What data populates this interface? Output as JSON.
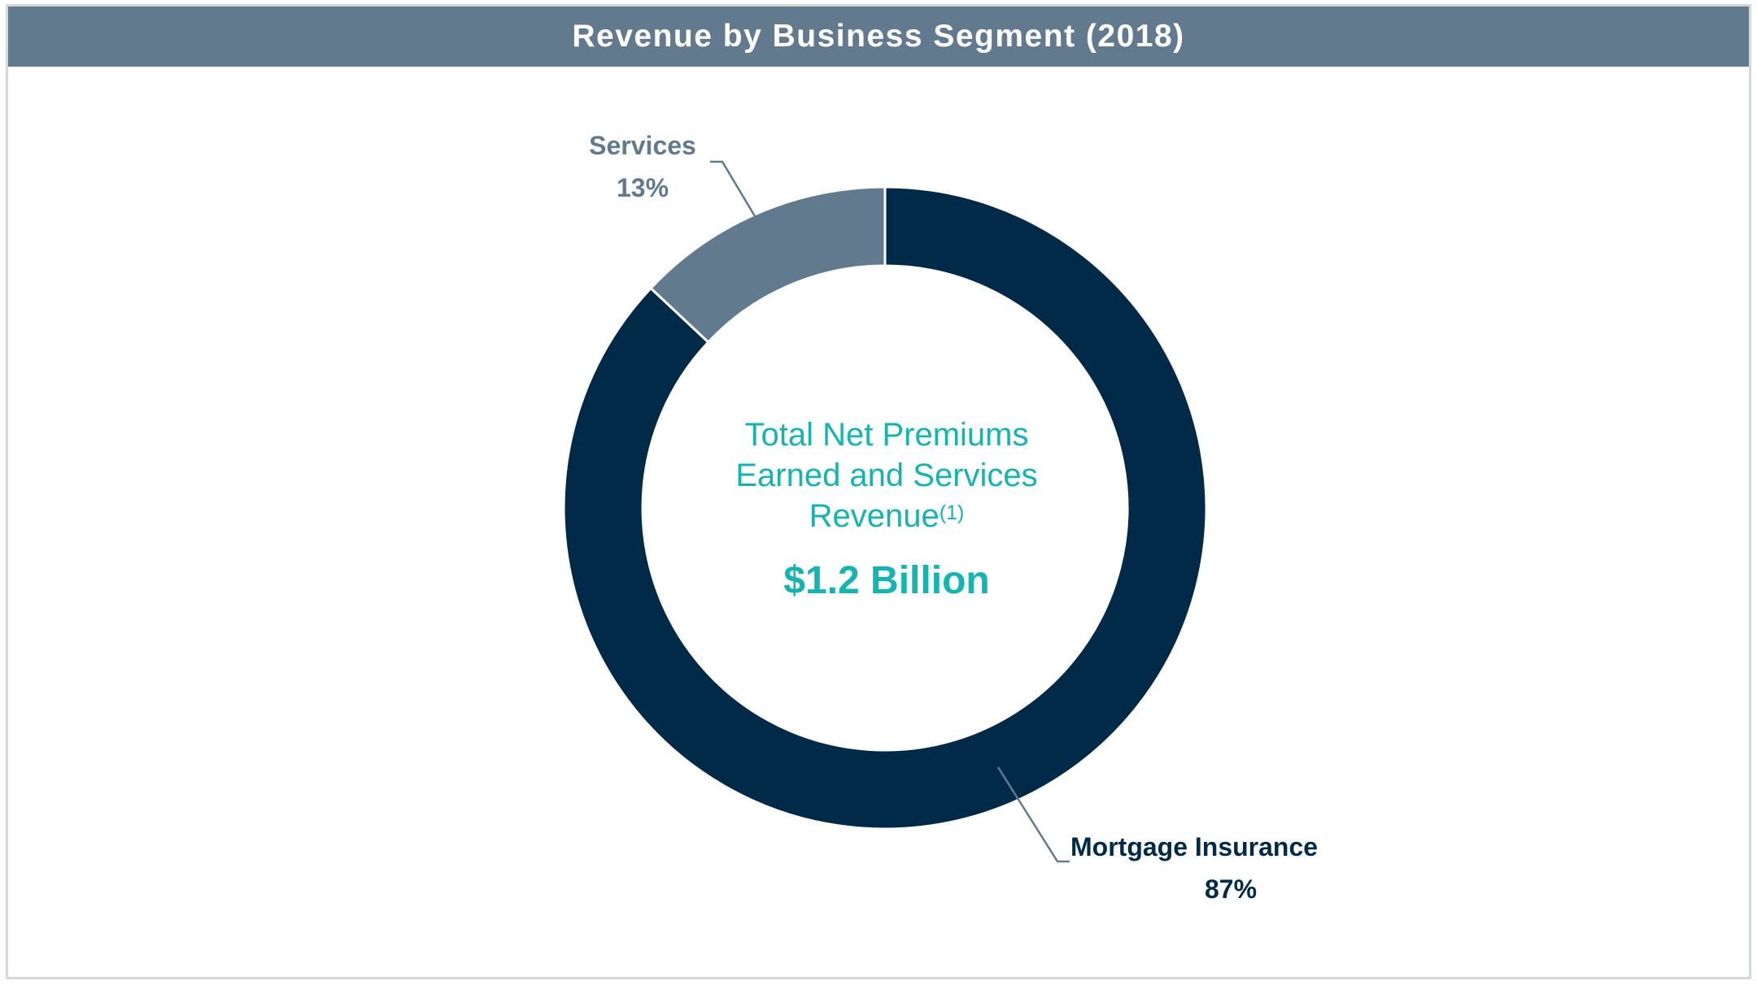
{
  "chart_data": {
    "type": "pie",
    "style": "donut",
    "title": "Revenue by Business Segment (2018)",
    "slices": [
      {
        "label": "Mortgage Insurance",
        "value": 87,
        "value_label": "87%",
        "color": "#002a48"
      },
      {
        "label": "Services",
        "value": 13,
        "value_label": "13%",
        "color": "#627a8d"
      }
    ],
    "center": {
      "lines": [
        "Total Net Premiums",
        "Earned and Services",
        "Revenue"
      ],
      "superscript": "(1)",
      "value": "$1.2 Billion"
    },
    "legend": "none"
  },
  "colors": {
    "header_bg": "#627a8d",
    "accent_teal": "#12b5b0",
    "leader_line": "#627a8d",
    "border": "#d3d7db"
  }
}
